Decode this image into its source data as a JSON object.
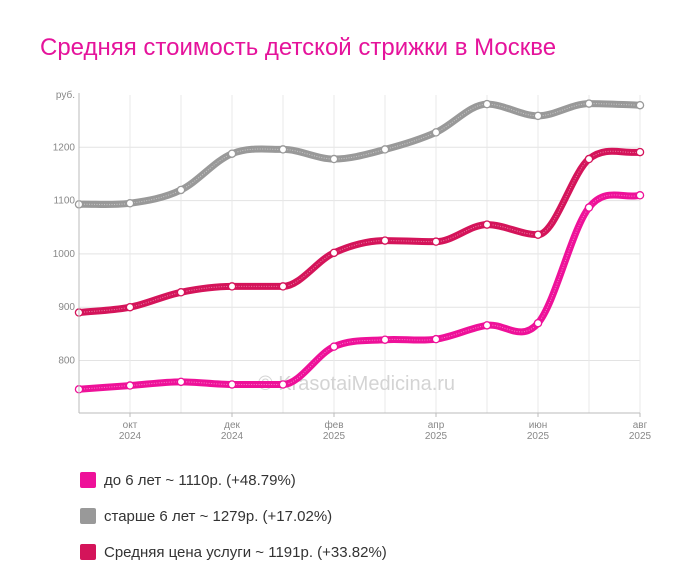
{
  "title": "Средняя стоимость детской стрижки в Москве",
  "watermark": "© KrasotaiMedicina.ru",
  "chart_data": {
    "type": "line",
    "title": "Средняя стоимость детской стрижки в Москве",
    "y_unit": "руб.",
    "ylim": [
      700,
      1300
    ],
    "yticks": [
      800,
      900,
      1000,
      1100,
      1200
    ],
    "grid": true,
    "legend_position": "bottom",
    "x_tick_labels": [
      {
        "month": "окт",
        "year": "2024"
      },
      {
        "month": "дек",
        "year": "2024"
      },
      {
        "month": "фев",
        "year": "2025"
      },
      {
        "month": "апр",
        "year": "2025"
      },
      {
        "month": "июн",
        "year": "2025"
      },
      {
        "month": "авг",
        "year": "2025"
      }
    ],
    "series": [
      {
        "name": "старше 6 лет",
        "legend": "старше 6 лет ~ 1279р. (+17.02%)",
        "color": "#999999",
        "values": [
          1093,
          1095,
          1120,
          1188,
          1196,
          1178,
          1196,
          1228,
          1281,
          1259,
          1282,
          1279
        ]
      },
      {
        "name": "Средняя цена услуги",
        "legend": "Средняя цена услуги ~ 1191р. (+33.82%)",
        "color": "#d4145a",
        "values": [
          890,
          900,
          928,
          939,
          939,
          1002,
          1025,
          1023,
          1055,
          1036,
          1178,
          1191
        ]
      },
      {
        "name": "до 6 лет",
        "legend": "до 6 лет ~ 1110р. (+48.79%)",
        "color": "#ee1199",
        "values": [
          746,
          753,
          760,
          755,
          755,
          826,
          839,
          840,
          866,
          870,
          1087,
          1110
        ]
      }
    ]
  },
  "legend_items": [
    {
      "label": "до 6 лет ~ 1110р. (+48.79%)",
      "color": "#ee1199"
    },
    {
      "label": "старше 6 лет ~ 1279р. (+17.02%)",
      "color": "#999999"
    },
    {
      "label": "Средняя цена услуги ~ 1191р. (+33.82%)",
      "color": "#d4145a"
    }
  ]
}
